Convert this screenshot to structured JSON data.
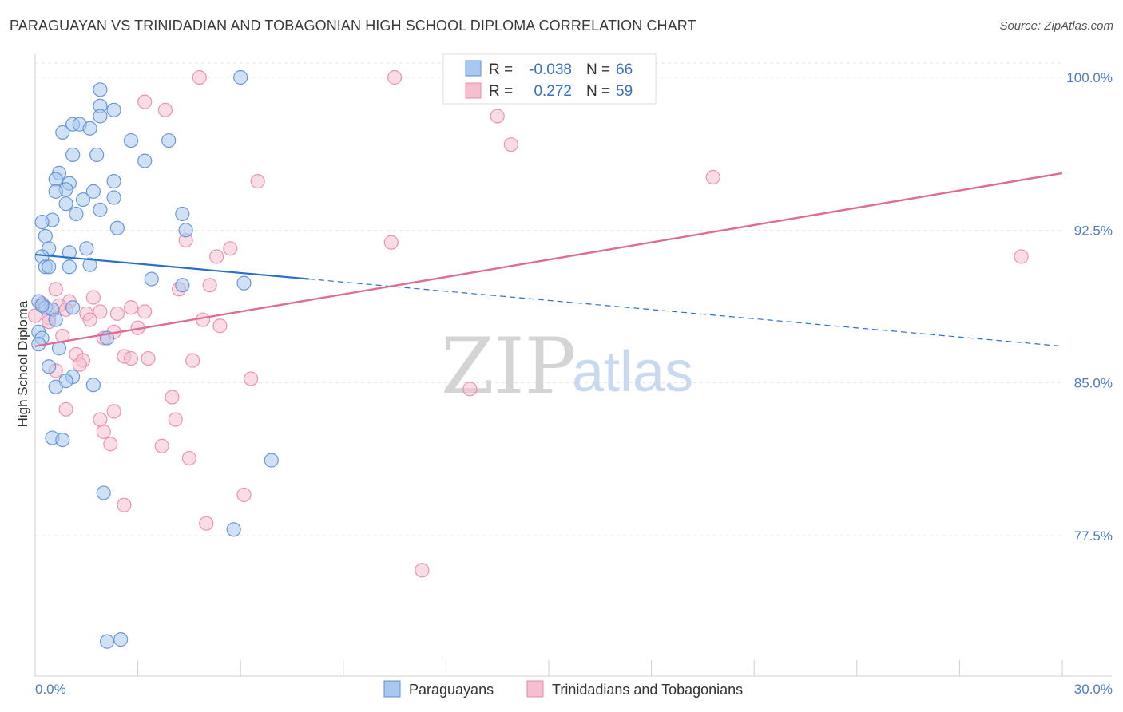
{
  "title": "PARAGUAYAN VS TRINIDADIAN AND TOBAGONIAN HIGH SCHOOL DIPLOMA CORRELATION CHART",
  "source": "Source: ZipAtlas.com",
  "watermark": {
    "zip": "ZIP",
    "atlas": "atlas"
  },
  "colors": {
    "blue_fill": "#a9c8ef",
    "blue_stroke": "#5b8fd6",
    "blue_line": "#2a6fcf",
    "pink_fill": "#f6bfd0",
    "pink_stroke": "#e98aa8",
    "pink_line": "#e06c95",
    "tick_text": "#4a7cc9",
    "grid": "#e6e6e6"
  },
  "legend": {
    "rows": [
      {
        "r_label": "R =",
        "r_value": "-0.038",
        "n_label": "N =",
        "n_value": "66"
      },
      {
        "r_label": "R =",
        "r_value": "0.272",
        "n_label": "N =",
        "n_value": "59"
      }
    ]
  },
  "chart_data": {
    "type": "scatter",
    "ylabel": "High School Diploma",
    "xlim": [
      0,
      30
    ],
    "ylim": [
      70.0,
      101.0
    ],
    "x_tick_labels": [
      "0.0%",
      "30.0%"
    ],
    "y_ticks": [
      {
        "value": 100.0,
        "label": "100.0%"
      },
      {
        "value": 92.5,
        "label": "92.5%"
      },
      {
        "value": 85.0,
        "label": "85.0%"
      },
      {
        "value": 77.5,
        "label": "77.5%"
      }
    ],
    "grid": true,
    "series": [
      {
        "name": "Paraguayans",
        "color": "blue",
        "trend": {
          "x0": 0,
          "y0": 91.3,
          "x1": 30,
          "y1": 86.8,
          "solid_until": 8.0
        },
        "points": [
          [
            6.0,
            100.0
          ],
          [
            1.9,
            99.4
          ],
          [
            1.9,
            98.6
          ],
          [
            2.3,
            98.4
          ],
          [
            1.9,
            98.1
          ],
          [
            1.1,
            97.7
          ],
          [
            1.3,
            97.7
          ],
          [
            1.6,
            97.5
          ],
          [
            0.8,
            97.3
          ],
          [
            2.8,
            96.9
          ],
          [
            3.9,
            96.9
          ],
          [
            1.1,
            96.2
          ],
          [
            1.8,
            96.2
          ],
          [
            3.2,
            95.9
          ],
          [
            0.7,
            95.3
          ],
          [
            0.6,
            95.0
          ],
          [
            2.3,
            94.9
          ],
          [
            1.0,
            94.8
          ],
          [
            0.9,
            94.5
          ],
          [
            1.7,
            94.4
          ],
          [
            0.6,
            94.4
          ],
          [
            2.3,
            94.1
          ],
          [
            1.4,
            94.0
          ],
          [
            0.9,
            93.8
          ],
          [
            1.9,
            93.5
          ],
          [
            1.2,
            93.3
          ],
          [
            4.3,
            93.3
          ],
          [
            0.5,
            93.0
          ],
          [
            0.2,
            92.9
          ],
          [
            2.4,
            92.6
          ],
          [
            4.4,
            92.5
          ],
          [
            0.3,
            92.2
          ],
          [
            0.4,
            91.6
          ],
          [
            1.5,
            91.6
          ],
          [
            1.0,
            91.4
          ],
          [
            0.2,
            91.2
          ],
          [
            1.6,
            90.8
          ],
          [
            0.3,
            90.7
          ],
          [
            0.4,
            90.7
          ],
          [
            1.0,
            90.7
          ],
          [
            3.4,
            90.1
          ],
          [
            6.1,
            89.9
          ],
          [
            4.3,
            89.8
          ],
          [
            0.1,
            89.0
          ],
          [
            0.3,
            88.7
          ],
          [
            0.5,
            88.6
          ],
          [
            1.1,
            88.7
          ],
          [
            0.6,
            88.1
          ],
          [
            0.1,
            87.5
          ],
          [
            0.2,
            87.2
          ],
          [
            2.1,
            87.2
          ],
          [
            0.1,
            86.9
          ],
          [
            0.7,
            86.7
          ],
          [
            0.4,
            85.8
          ],
          [
            1.1,
            85.3
          ],
          [
            0.9,
            85.1
          ],
          [
            0.6,
            84.8
          ],
          [
            1.7,
            84.9
          ],
          [
            0.5,
            82.3
          ],
          [
            0.8,
            82.2
          ],
          [
            6.9,
            81.2
          ],
          [
            2.0,
            79.6
          ],
          [
            5.8,
            77.8
          ],
          [
            2.1,
            72.3
          ],
          [
            2.5,
            72.4
          ],
          [
            0.2,
            88.8
          ]
        ]
      },
      {
        "name": "Trinidadians and Tobagonians",
        "color": "pink",
        "trend": {
          "x0": 0,
          "y0": 86.8,
          "x1": 30,
          "y1": 95.3
        },
        "points": [
          [
            4.8,
            100.0
          ],
          [
            10.5,
            100.0
          ],
          [
            3.2,
            98.8
          ],
          [
            3.8,
            98.4
          ],
          [
            13.5,
            98.1
          ],
          [
            13.9,
            96.7
          ],
          [
            19.8,
            95.1
          ],
          [
            6.5,
            94.9
          ],
          [
            10.4,
            91.9
          ],
          [
            4.4,
            92.0
          ],
          [
            5.7,
            91.6
          ],
          [
            5.3,
            91.2
          ],
          [
            28.8,
            91.2
          ],
          [
            4.2,
            89.6
          ],
          [
            5.1,
            89.8
          ],
          [
            0.6,
            89.6
          ],
          [
            1.7,
            89.2
          ],
          [
            1.0,
            89.0
          ],
          [
            0.2,
            88.9
          ],
          [
            0.7,
            88.8
          ],
          [
            2.8,
            88.7
          ],
          [
            0.9,
            88.6
          ],
          [
            1.9,
            88.5
          ],
          [
            3.2,
            88.5
          ],
          [
            2.4,
            88.4
          ],
          [
            0.0,
            88.3
          ],
          [
            0.4,
            88.2
          ],
          [
            1.5,
            88.4
          ],
          [
            0.4,
            88.0
          ],
          [
            1.6,
            88.1
          ],
          [
            4.9,
            88.1
          ],
          [
            5.4,
            87.8
          ],
          [
            3.0,
            87.7
          ],
          [
            2.3,
            87.5
          ],
          [
            2.0,
            87.2
          ],
          [
            0.8,
            87.3
          ],
          [
            1.2,
            86.4
          ],
          [
            1.4,
            86.1
          ],
          [
            2.6,
            86.3
          ],
          [
            2.8,
            86.2
          ],
          [
            3.3,
            86.2
          ],
          [
            4.6,
            86.1
          ],
          [
            1.3,
            85.9
          ],
          [
            0.6,
            85.6
          ],
          [
            6.3,
            85.2
          ],
          [
            12.7,
            84.7
          ],
          [
            4.0,
            84.3
          ],
          [
            0.9,
            83.7
          ],
          [
            2.3,
            83.6
          ],
          [
            1.9,
            83.2
          ],
          [
            4.1,
            83.2
          ],
          [
            2.0,
            82.6
          ],
          [
            2.2,
            82.0
          ],
          [
            3.7,
            81.9
          ],
          [
            4.5,
            81.3
          ],
          [
            6.1,
            79.5
          ],
          [
            2.6,
            79.0
          ],
          [
            5.0,
            78.1
          ],
          [
            11.3,
            75.8
          ]
        ]
      }
    ]
  }
}
